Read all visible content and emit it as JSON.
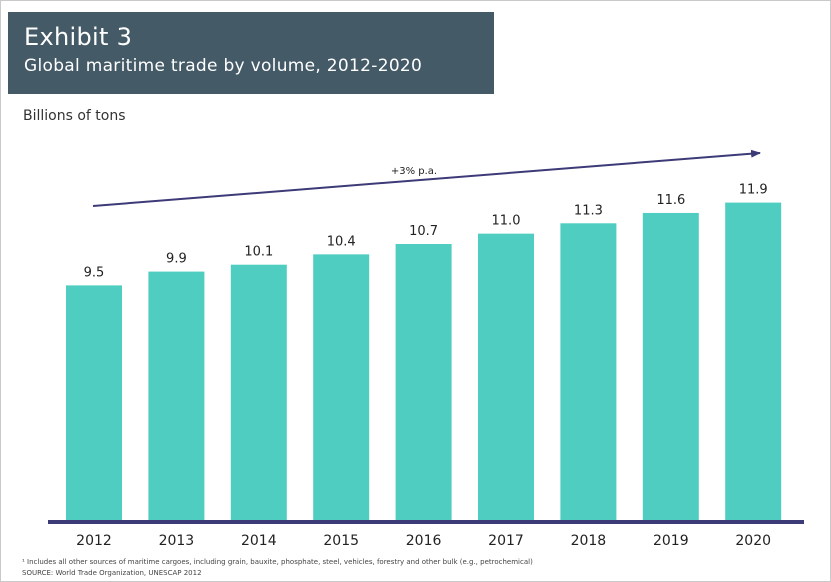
{
  "header": {
    "exhibit": "Exhibit 3",
    "subtitle": "Global maritime trade by volume, 2012-2020"
  },
  "unit_label": "Billions of tons",
  "trend_label": "+3% p.a.",
  "footnotes": {
    "note": "¹ Includes all other sources of maritime cargoes, including grain, bauxite, phosphate, steel, vehicles, forestry and other bulk (e.g., petrochemical)",
    "source": "SOURCE: World Trade Organization, UNESCAP 2012"
  },
  "colors": {
    "bar": "#4ecdc0",
    "axis": "#3d3a78",
    "header_bg": "#445a67"
  },
  "chart_data": {
    "type": "bar",
    "categories": [
      "2012",
      "2013",
      "2014",
      "2015",
      "2016",
      "2017",
      "2018",
      "2019",
      "2020"
    ],
    "values": [
      9.5,
      9.9,
      10.1,
      10.4,
      10.7,
      11.0,
      11.3,
      11.6,
      11.9
    ],
    "value_labels": [
      "9.5",
      "9.9",
      "10.1",
      "10.4",
      "10.7",
      "11.0",
      "11.3",
      "11.6",
      "11.9"
    ],
    "ylabel": "Billions of tons",
    "annotation": "+3% p.a.",
    "grid": false,
    "legend": "none"
  }
}
